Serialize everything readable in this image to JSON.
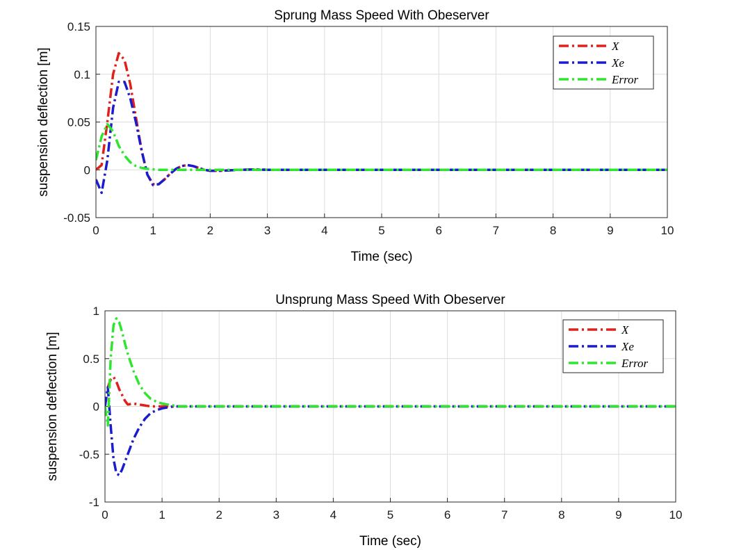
{
  "chart_data": [
    {
      "type": "line",
      "title": "Sprung Mass Speed With Obeserver",
      "xlabel": "Time (sec)",
      "ylabel": "suspension deflection [m]",
      "xlim": [
        0,
        10
      ],
      "ylim": [
        -0.05,
        0.15
      ],
      "xticks": [
        "0",
        "1",
        "2",
        "3",
        "4",
        "5",
        "6",
        "7",
        "8",
        "9",
        "10"
      ],
      "yticks": [
        "-0.05",
        "0",
        "0.05",
        "0.1",
        "0.15"
      ],
      "ytick_values": [
        -0.05,
        0,
        0.05,
        0.1,
        0.15
      ],
      "grid": true,
      "legend_position": "top-right",
      "x": [
        0,
        0.1,
        0.2,
        0.3,
        0.4,
        0.5,
        0.6,
        0.7,
        0.8,
        0.9,
        1.0,
        1.1,
        1.2,
        1.3,
        1.4,
        1.5,
        1.6,
        1.7,
        1.8,
        1.9,
        2.0,
        2.1,
        2.2,
        2.5,
        2.8,
        3.0,
        4.0,
        5.0,
        6.0,
        7.0,
        8.0,
        9.0,
        10.0
      ],
      "series": [
        {
          "name": "X",
          "color": "#e0201b",
          "values": [
            0,
            0.005,
            0.05,
            0.1,
            0.122,
            0.115,
            0.09,
            0.055,
            0.02,
            -0.005,
            -0.015,
            -0.015,
            -0.01,
            -0.004,
            0.001,
            0.004,
            0.005,
            0.004,
            0.002,
            0,
            -0.001,
            -0.001,
            -0.001,
            0,
            0.0005,
            0,
            0,
            0,
            0,
            0,
            0,
            0,
            0
          ]
        },
        {
          "name": "Xe",
          "color": "#1c1ccf",
          "values": [
            -0.01,
            -0.024,
            0.01,
            0.065,
            0.092,
            0.092,
            0.075,
            0.05,
            0.02,
            -0.005,
            -0.016,
            -0.015,
            -0.01,
            -0.004,
            0.001,
            0.004,
            0.005,
            0.004,
            0.002,
            0,
            -0.001,
            -0.001,
            -0.001,
            0,
            0.0005,
            0,
            0,
            0,
            0,
            0,
            0,
            0,
            0
          ]
        },
        {
          "name": "Error",
          "color": "#2ee62e",
          "values": [
            0.01,
            0.035,
            0.048,
            0.04,
            0.025,
            0.015,
            0.008,
            0.004,
            0.002,
            0.001,
            0.0005,
            0,
            0,
            0,
            0,
            0,
            0,
            0,
            0,
            0,
            0,
            0,
            0,
            0,
            0,
            0,
            0,
            0,
            0,
            0,
            0,
            0,
            0
          ]
        }
      ]
    },
    {
      "type": "line",
      "title": "Unsprung Mass Speed With Obeserver",
      "xlabel": "Time (sec)",
      "ylabel": "suspension deflection [m]",
      "xlim": [
        0,
        10
      ],
      "ylim": [
        -1,
        1
      ],
      "xticks": [
        "0",
        "1",
        "2",
        "3",
        "4",
        "5",
        "6",
        "7",
        "8",
        "9",
        "10"
      ],
      "yticks": [
        "-1",
        "-0.5",
        "0",
        "0.5",
        "1"
      ],
      "ytick_values": [
        -1,
        -0.5,
        0,
        0.5,
        1
      ],
      "grid": true,
      "legend_position": "top-right",
      "x": [
        0,
        0.05,
        0.1,
        0.15,
        0.2,
        0.25,
        0.3,
        0.35,
        0.4,
        0.5,
        0.6,
        0.7,
        0.8,
        0.9,
        1.0,
        1.1,
        1.2,
        1.3,
        1.5,
        2.0,
        3.0,
        4.0,
        5.0,
        6.0,
        7.0,
        8.0,
        9.0,
        10.0
      ],
      "series": [
        {
          "name": "X",
          "color": "#e0201b",
          "values": [
            0,
            0.2,
            0.28,
            0.31,
            0.26,
            0.18,
            0.12,
            0.06,
            0.02,
            0.03,
            0.02,
            0.01,
            0,
            0,
            0,
            0,
            0,
            0,
            0,
            0,
            0,
            0,
            0,
            0,
            0,
            0,
            0,
            0
          ]
        },
        {
          "name": "Xe",
          "color": "#1c1ccf",
          "values": [
            0,
            0.2,
            -0.2,
            -0.55,
            -0.7,
            -0.72,
            -0.66,
            -0.58,
            -0.5,
            -0.34,
            -0.22,
            -0.13,
            -0.07,
            -0.04,
            -0.02,
            -0.01,
            0,
            0,
            0,
            0,
            0,
            0,
            0,
            0,
            0,
            0,
            0,
            0
          ]
        },
        {
          "name": "Error",
          "color": "#2ee62e",
          "values": [
            0,
            -0.2,
            0.5,
            0.85,
            0.92,
            0.88,
            0.78,
            0.66,
            0.55,
            0.37,
            0.23,
            0.14,
            0.08,
            0.05,
            0.03,
            0.02,
            0.01,
            0,
            0,
            0,
            0,
            0,
            0,
            0,
            0,
            0,
            0,
            0
          ]
        }
      ]
    }
  ]
}
